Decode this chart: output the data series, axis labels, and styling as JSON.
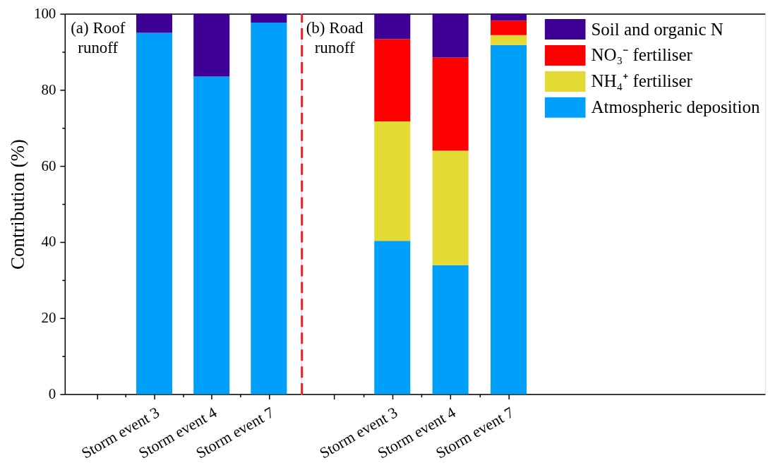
{
  "chart_data": [
    {
      "type": "bar",
      "stacked": true,
      "ylabel": "Contribution (%)",
      "categories": [
        null,
        "Storm event 3",
        "Storm event 4",
        "Storm event 7"
      ],
      "ylim": [
        0,
        100
      ],
      "yticks": [
        0,
        {
          "value": 10,
          "label": null
        },
        20,
        {
          "value": 30,
          "label": null
        },
        40,
        {
          "value": 50,
          "label": null
        },
        60,
        {
          "value": 70,
          "label": null
        },
        80,
        {
          "value": 90,
          "label": null
        },
        100
      ],
      "series": [
        {
          "color": "#009ffa",
          "values": [
            null,
            95,
            83.5,
            97.7
          ]
        },
        {
          "color": "#3f0096",
          "values": [
            null,
            5,
            16.5,
            2.3
          ]
        }
      ],
      "annotations": [
        "(a) Roof runoff"
      ]
    },
    {
      "type": "bar",
      "stacked": true,
      "categories": [
        null,
        "Storm event 3",
        "Storm event 4",
        "Storm event 7"
      ],
      "ylim": [
        0,
        100
      ],
      "tick_labels": "x",
      "series": [
        {
          "name": "Atmospheric deposition",
          "color": "#009ffa",
          "values": [
            null,
            40.3,
            33.9,
            91.8
          ]
        },
        {
          "name": "NH₄⁺ fertiliser",
          "color": "#e3da36",
          "values": [
            null,
            31.4,
            30.1,
            2.6
          ]
        },
        {
          "name": "NO₃⁻ fertiliser",
          "color": "#ff0000",
          "values": [
            null,
            21.7,
            24.5,
            3.8
          ]
        },
        {
          "name": "Soil and organic N",
          "color": "#3f0096",
          "values": [
            null,
            6.6,
            11.5,
            1.8
          ]
        }
      ],
      "legend": "top right",
      "annotations": [
        "(b) Road runoff"
      ]
    }
  ]
}
